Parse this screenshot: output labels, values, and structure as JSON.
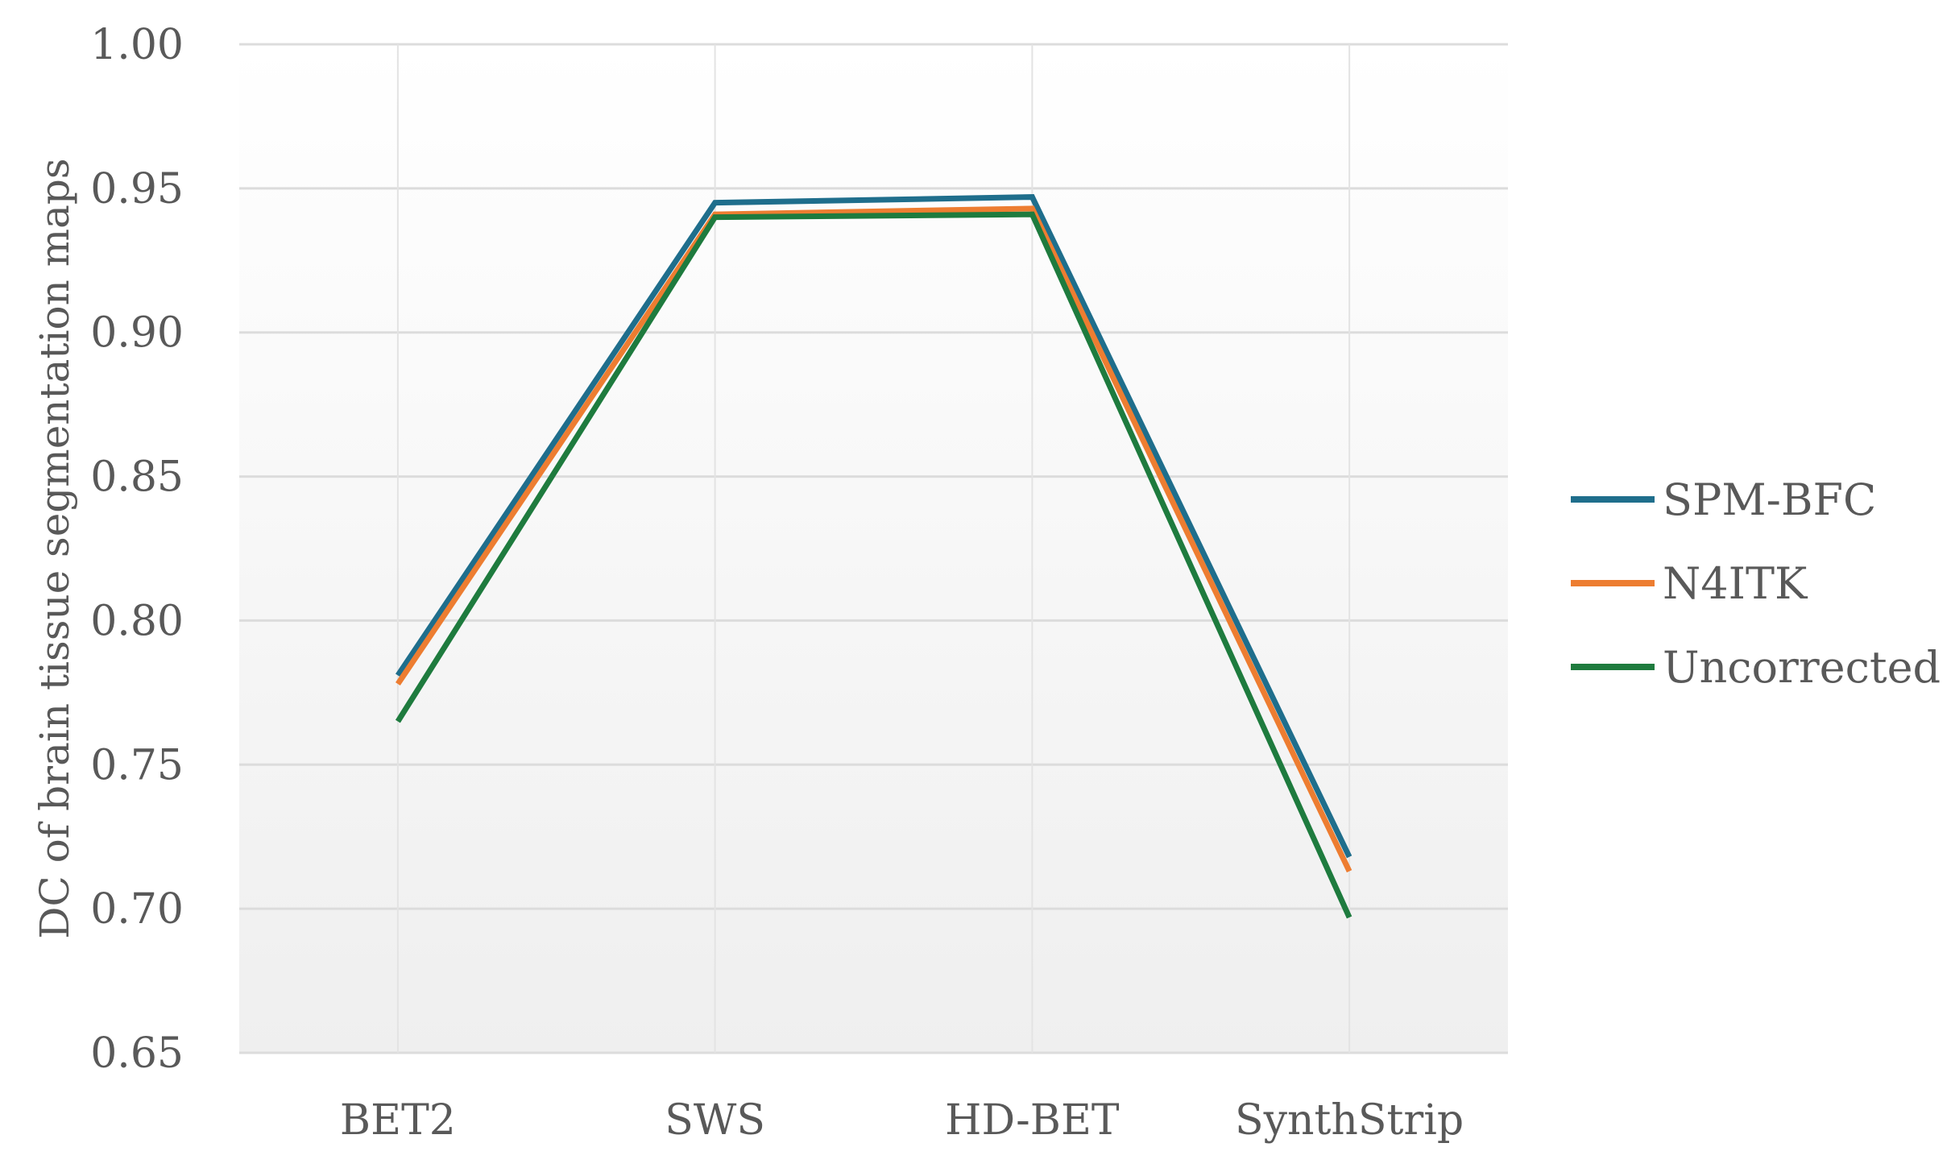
{
  "chart_data": {
    "type": "line",
    "categories": [
      "BET2",
      "SWS",
      "HD-BET",
      "SynthStrip"
    ],
    "series": [
      {
        "name": "SPM-BFC",
        "color": "#1f6e8c",
        "values": [
          0.781,
          0.945,
          0.947,
          0.718
        ]
      },
      {
        "name": "N4ITK",
        "color": "#ed7d31",
        "values": [
          0.778,
          0.941,
          0.943,
          0.713
        ]
      },
      {
        "name": "Uncorrected",
        "color": "#1e7b3e",
        "values": [
          0.765,
          0.94,
          0.941,
          0.697
        ]
      }
    ],
    "title": "",
    "xlabel": "",
    "ylabel": "DC of brain tissue segmentation maps",
    "ylim": [
      0.65,
      1.0
    ],
    "yticks": [
      "0.65",
      "0.70",
      "0.75",
      "0.80",
      "0.85",
      "0.90",
      "0.95",
      "1.00"
    ],
    "grid": true,
    "legend": "right"
  }
}
